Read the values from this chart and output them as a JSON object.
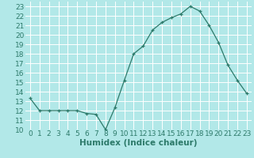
{
  "x": [
    0,
    1,
    2,
    3,
    4,
    5,
    6,
    7,
    8,
    9,
    10,
    11,
    12,
    13,
    14,
    15,
    16,
    17,
    18,
    19,
    20,
    21,
    22,
    23
  ],
  "y": [
    13.3,
    12.0,
    12.0,
    12.0,
    12.0,
    12.0,
    11.7,
    11.6,
    10.0,
    12.3,
    15.2,
    18.0,
    18.8,
    20.5,
    21.3,
    21.8,
    22.2,
    23.0,
    22.5,
    21.0,
    19.2,
    16.8,
    15.2,
    13.8
  ],
  "xlabel": "Humidex (Indice chaleur)",
  "xlim": [
    -0.5,
    23.5
  ],
  "ylim": [
    10,
    23.5
  ],
  "yticks": [
    10,
    11,
    12,
    13,
    14,
    15,
    16,
    17,
    18,
    19,
    20,
    21,
    22,
    23
  ],
  "xticks": [
    0,
    1,
    2,
    3,
    4,
    5,
    6,
    7,
    8,
    9,
    10,
    11,
    12,
    13,
    14,
    15,
    16,
    17,
    18,
    19,
    20,
    21,
    22,
    23
  ],
  "line_color": "#2d7a6a",
  "bg_color": "#b2e8e8",
  "grid_color": "#ffffff",
  "xlabel_fontsize": 7.5,
  "tick_fontsize": 6.5
}
